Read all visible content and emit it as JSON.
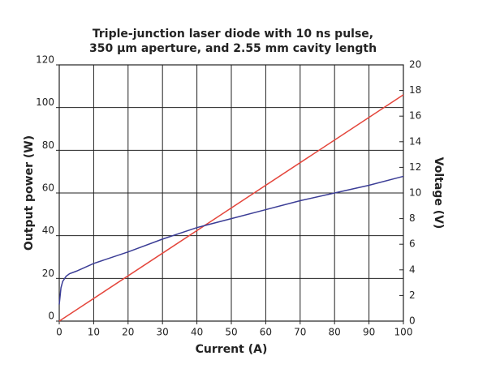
{
  "chart_data": {
    "type": "line",
    "title": [
      "Triple-junction laser diode with 10 ns pulse,",
      "350 μm aperture, and 2.55 mm cavity length"
    ],
    "x_label": "Current (A)",
    "y_label": "Output power (W)",
    "y2_label": "Voltage (V)",
    "xlim": [
      0,
      100
    ],
    "xticks": [
      0,
      10,
      20,
      30,
      40,
      50,
      60,
      70,
      80,
      90,
      100
    ],
    "ylim": [
      0,
      120
    ],
    "yticks": [
      0,
      20,
      40,
      60,
      80,
      100,
      120
    ],
    "y2lim": [
      0,
      20
    ],
    "y2ticks": [
      0,
      2,
      4,
      6,
      8,
      10,
      12,
      14,
      16,
      18,
      20
    ],
    "grid": true,
    "series": [
      {
        "color": "#e4463c",
        "x": [
          0,
          100
        ],
        "values": [
          0,
          106
        ]
      },
      {
        "color": "#3b3d96",
        "axis": "y2",
        "x": [
          0,
          0.5,
          1,
          2,
          3,
          5,
          10,
          20,
          30,
          40,
          50,
          60,
          70,
          80,
          90,
          100
        ],
        "values": [
          1.3,
          2.6,
          3.1,
          3.5,
          3.7,
          3.9,
          4.5,
          5.4,
          6.4,
          7.3,
          8.0,
          8.7,
          9.4,
          10.0,
          10.6,
          11.3
        ]
      }
    ]
  }
}
